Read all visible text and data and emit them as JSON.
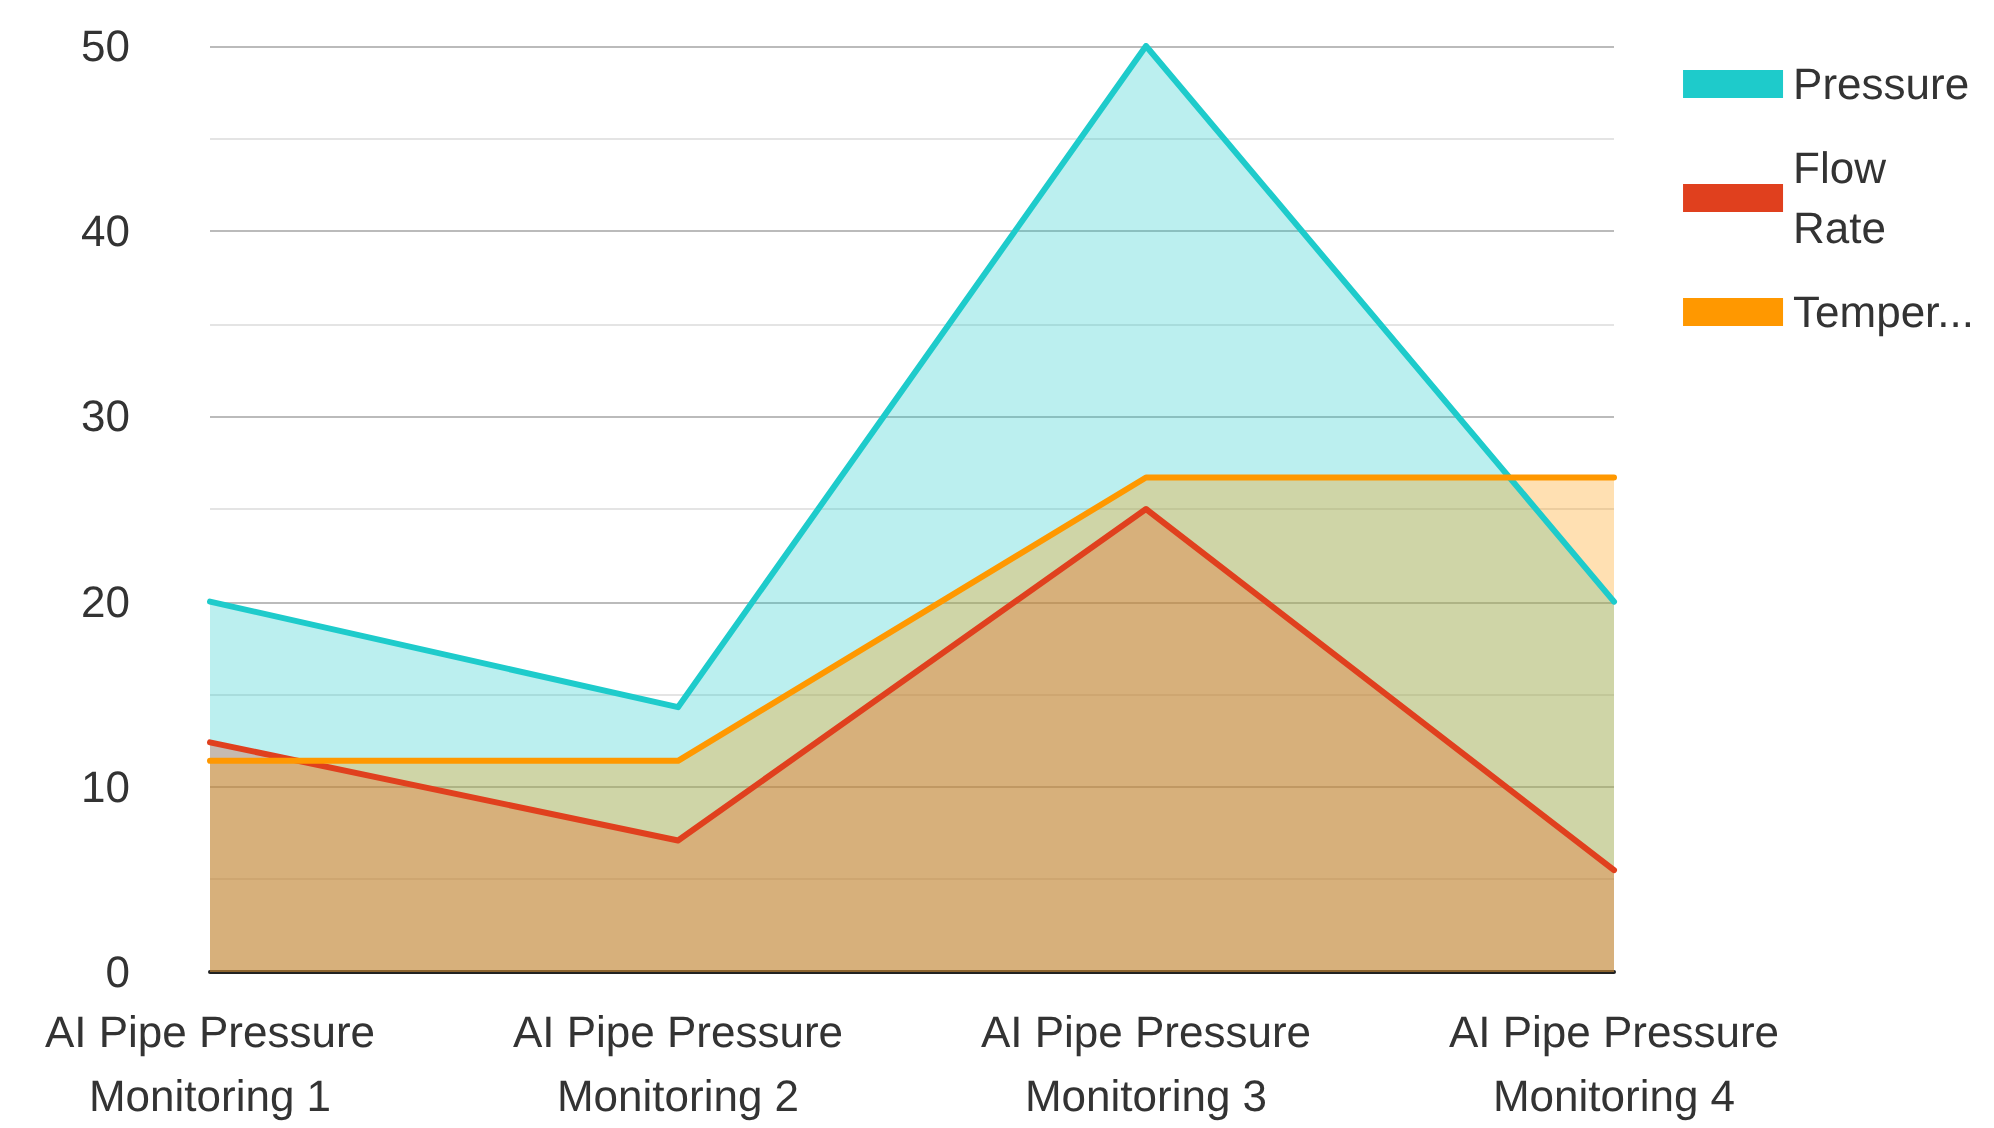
{
  "chart_data": {
    "type": "area",
    "categories": [
      "AI Pipe Pressure\nMonitoring 1",
      "AI Pipe Pressure\nMonitoring 2",
      "AI Pipe Pressure\nMonitoring 3",
      "AI Pipe Pressure\nMonitoring 4"
    ],
    "series": [
      {
        "name": "Pressure",
        "color": "#1ecbcb",
        "values": [
          20,
          14.3,
          50,
          20
        ]
      },
      {
        "name": "Flow Rate",
        "color": "#e0401e",
        "values": [
          12.4,
          7.1,
          25,
          5.5
        ]
      },
      {
        "name": "Temper...",
        "color": "#ff9800",
        "values": [
          11.4,
          11.4,
          26.7,
          26.7
        ]
      }
    ],
    "ylim": [
      0,
      50
    ],
    "yticks": [
      0,
      10,
      20,
      30,
      40,
      50
    ],
    "grid": "y",
    "legend": "top right",
    "marker": "none",
    "line_style": "solid"
  }
}
